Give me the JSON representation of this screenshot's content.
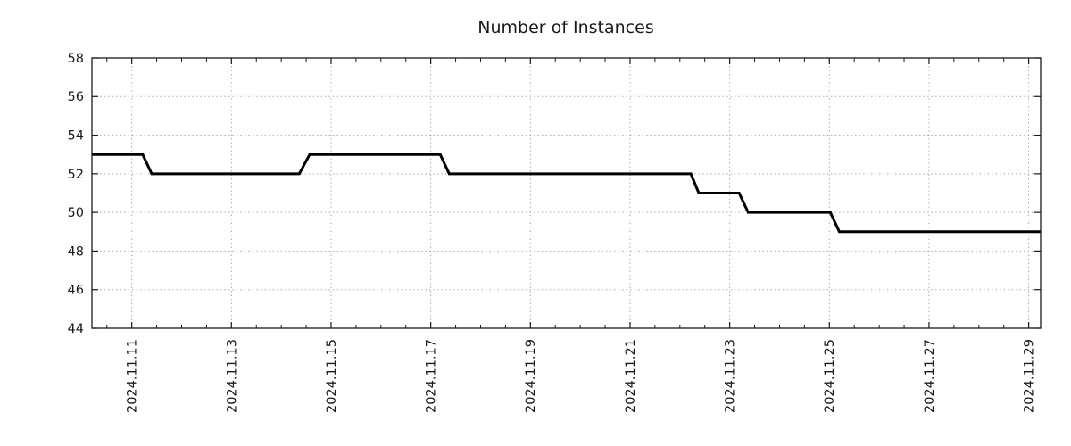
{
  "chart_data": {
    "type": "line",
    "title": "Number of Instances",
    "xlabel": "",
    "ylabel": "",
    "legend": "none",
    "grid": "dotted",
    "x_unit": "fractional day of 2024-11",
    "x_range": [
      10.2,
      29.24
    ],
    "y_range": [
      44,
      58
    ],
    "x_major_ticks": [
      {
        "value": 11,
        "label": "2024.11.11"
      },
      {
        "value": 13,
        "label": "2024.11.13"
      },
      {
        "value": 15,
        "label": "2024.11.15"
      },
      {
        "value": 17,
        "label": "2024.11.17"
      },
      {
        "value": 19,
        "label": "2024.11.19"
      },
      {
        "value": 21,
        "label": "2024.11.21"
      },
      {
        "value": 23,
        "label": "2024.11.23"
      },
      {
        "value": 25,
        "label": "2024.11.25"
      },
      {
        "value": 27,
        "label": "2024.11.27"
      },
      {
        "value": 29,
        "label": "2024.11.29"
      }
    ],
    "x_minor_tick_step": 0.5,
    "y_ticks": [
      44,
      46,
      48,
      50,
      52,
      54,
      56,
      58
    ],
    "series": [
      {
        "name": "Number of Instances",
        "points": [
          [
            10.2,
            53
          ],
          [
            11.22,
            53
          ],
          [
            11.4,
            52
          ],
          [
            14.36,
            52
          ],
          [
            14.57,
            53
          ],
          [
            17.19,
            53
          ],
          [
            17.37,
            52
          ],
          [
            22.22,
            52
          ],
          [
            22.38,
            51
          ],
          [
            23.19,
            51
          ],
          [
            23.37,
            50
          ],
          [
            25.02,
            50
          ],
          [
            25.2,
            49
          ],
          [
            29.24,
            49
          ]
        ]
      }
    ],
    "colors": {
      "line": "#000000",
      "grid": "#aaaaaa",
      "frame": "#1a1a1a",
      "text": "#1a1a1a",
      "background": "#ffffff"
    },
    "line_width": 3
  }
}
